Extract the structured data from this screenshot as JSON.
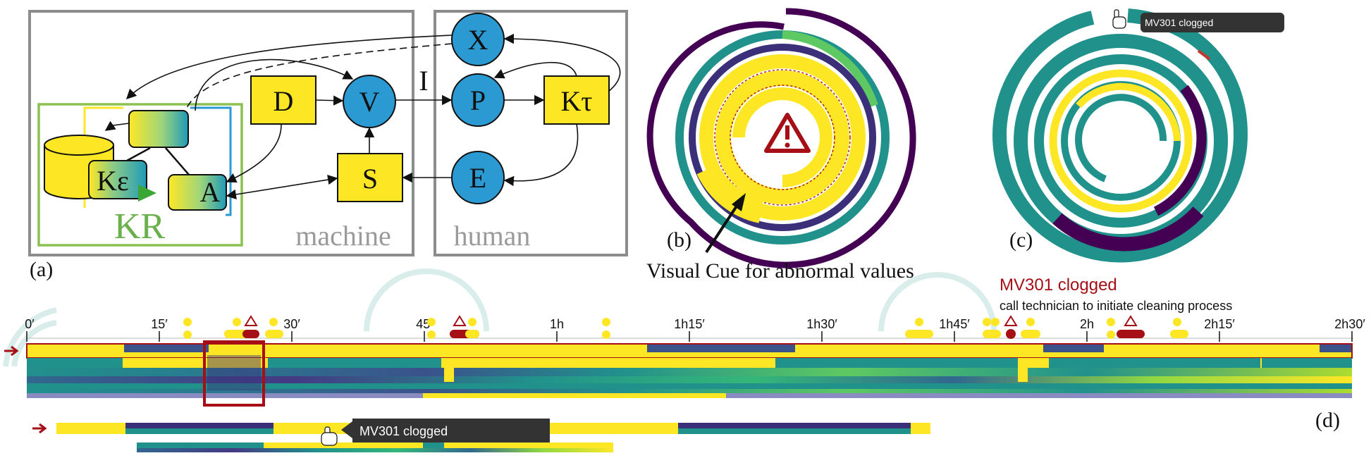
{
  "panel_a": {
    "label": "(a)",
    "nodes": {
      "x": "X",
      "p": "P",
      "e": "E",
      "v": "V",
      "d": "D",
      "s": "S",
      "k_tau": "Kτ",
      "k_eps": "Kε",
      "a": "A"
    },
    "edge_label_i": "I",
    "kr_label": "KR",
    "machine_label": "machine",
    "human_label": "human"
  },
  "panel_b": {
    "label": "(b)",
    "caption": "Visual Cue for abnormal values"
  },
  "panel_c": {
    "label": "(c)",
    "tooltip": "MV301 clogged"
  },
  "panel_d": {
    "label": "(d)",
    "alarm_title": "MV301 clogged",
    "alarm_subtitle": "call technician to initiate cleaning process",
    "ticks": [
      "0′",
      "15′",
      "30′",
      "45′",
      "1h",
      "1h15′",
      "1h30′",
      "1h45′",
      "2h",
      "2h15′",
      "2h30′"
    ],
    "tooltip": "MV301 clogged"
  },
  "colors": {
    "node_blue": "#2b9ad3",
    "yellow": "#fde725",
    "teal": "#21918c",
    "purple": "#440154",
    "green_frame": "#8cc152",
    "alarm_red": "#a50f15",
    "gray_frame": "#8c8c8c"
  }
}
